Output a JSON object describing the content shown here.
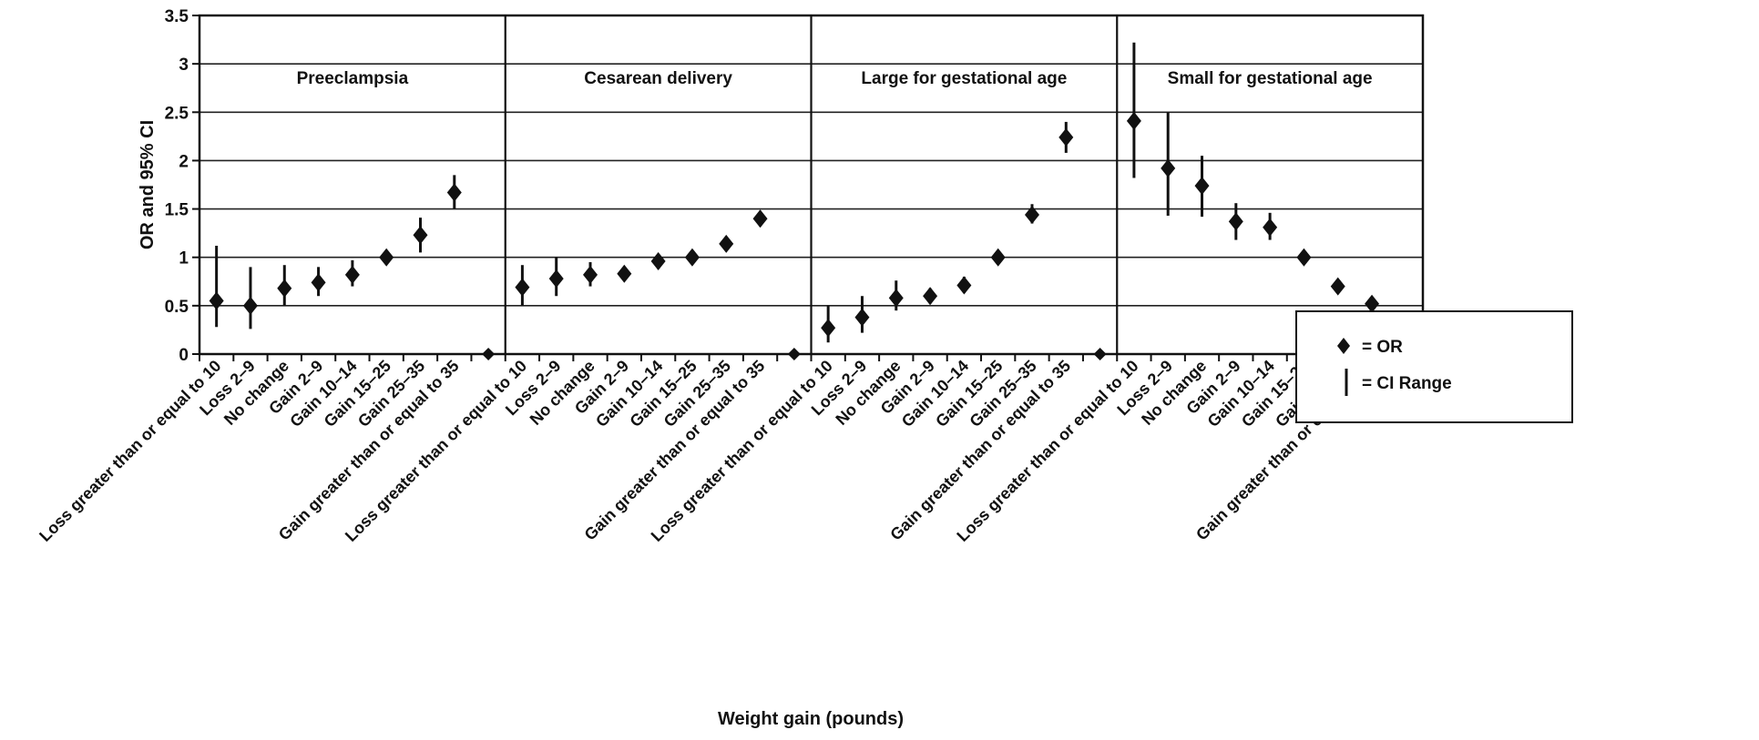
{
  "chart_data": {
    "type": "scatter",
    "xlabel": "Weight gain (pounds)",
    "ylabel": "OR and 95% CI",
    "ylim": [
      0,
      3.5
    ],
    "yticks": [
      "0",
      "0.5",
      "1",
      "1.5",
      "2",
      "2.5",
      "3",
      "3.5"
    ],
    "grid": true,
    "categories": [
      "Loss greater than or equal to 10",
      "Loss 2–9",
      "No change",
      "Gain 2–9",
      "Gain 10–14",
      "Gain 15–25",
      "Gain 25–35",
      "Gain greater than or equal to 35"
    ],
    "legend": {
      "placement": "center-right",
      "or_label": "= OR",
      "ci_label": "= CI  Range"
    },
    "panels": [
      {
        "title": "Preeclampsia",
        "or": [
          0.55,
          0.5,
          0.68,
          0.74,
          0.82,
          1.0,
          1.23,
          1.67
        ],
        "ci_low": [
          0.28,
          0.26,
          0.5,
          0.6,
          0.7,
          1.0,
          1.05,
          1.5
        ],
        "ci_high": [
          1.12,
          0.9,
          0.92,
          0.9,
          0.97,
          1.0,
          1.41,
          1.85
        ]
      },
      {
        "title": "Cesarean delivery",
        "or": [
          0.69,
          0.78,
          0.82,
          0.83,
          0.96,
          1.0,
          1.14,
          1.4
        ],
        "ci_low": [
          0.5,
          0.6,
          0.7,
          0.76,
          0.88,
          1.0,
          1.08,
          1.32
        ],
        "ci_high": [
          0.92,
          1.0,
          0.95,
          0.9,
          1.02,
          1.0,
          1.2,
          1.48
        ]
      },
      {
        "title": "Large for gestational age",
        "or": [
          0.27,
          0.38,
          0.58,
          0.6,
          0.71,
          1.0,
          1.44,
          2.24
        ],
        "ci_low": [
          0.12,
          0.22,
          0.45,
          0.52,
          0.63,
          1.0,
          1.35,
          2.08
        ],
        "ci_high": [
          0.5,
          0.6,
          0.76,
          0.68,
          0.8,
          1.0,
          1.55,
          2.4
        ]
      },
      {
        "title": "Small for gestational age",
        "or": [
          2.41,
          1.92,
          1.74,
          1.37,
          1.31,
          1.0,
          0.7,
          0.52
        ],
        "ci_low": [
          1.82,
          1.43,
          1.42,
          1.18,
          1.18,
          1.0,
          0.66,
          0.48
        ],
        "ci_high": [
          3.22,
          2.5,
          2.05,
          1.56,
          1.46,
          1.0,
          0.74,
          0.56
        ]
      }
    ],
    "marker_on_axis_labels": [
      "0",
      "0",
      "0"
    ]
  }
}
